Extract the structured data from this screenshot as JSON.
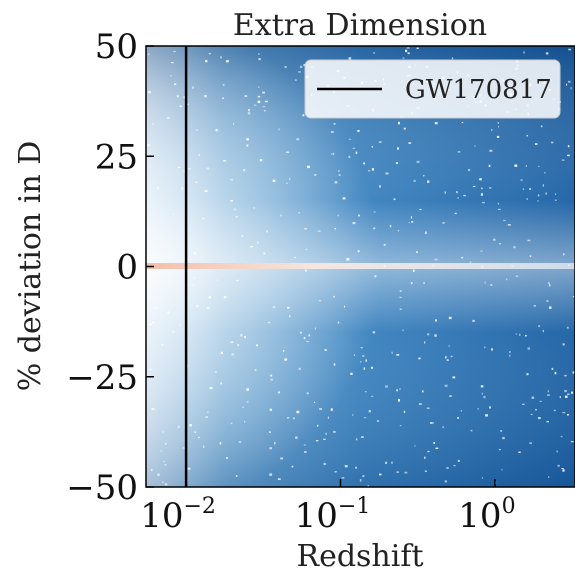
{
  "chart_data": {
    "type": "heatmap",
    "title": "Extra Dimension",
    "xlabel": "Redshift",
    "ylabel": "% deviation in D",
    "x_scale": "log",
    "xlim": [
      0.0055,
      3.3
    ],
    "ylim": [
      -50,
      50
    ],
    "x_ticks": [
      {
        "value": 0.01,
        "label": "10",
        "exp": "−2"
      },
      {
        "value": 0.1,
        "label": "10",
        "exp": "−1"
      },
      {
        "value": 1,
        "label": "10",
        "exp": "0"
      }
    ],
    "y_ticks": [
      {
        "value": 50,
        "label": "50"
      },
      {
        "value": 25,
        "label": "25"
      },
      {
        "value": 0,
        "label": "0"
      },
      {
        "value": -25,
        "label": "−25"
      },
      {
        "value": -50,
        "label": "−50"
      }
    ],
    "grid": false,
    "colormap": "Blues",
    "ridge": {
      "y": 0,
      "color": "#f2b8a0"
    },
    "vertical_line": {
      "x": 0.01,
      "label": "GW170817",
      "color": "#000000"
    },
    "legend": {
      "placement": "top-right",
      "entries": [
        "GW170817"
      ]
    }
  }
}
